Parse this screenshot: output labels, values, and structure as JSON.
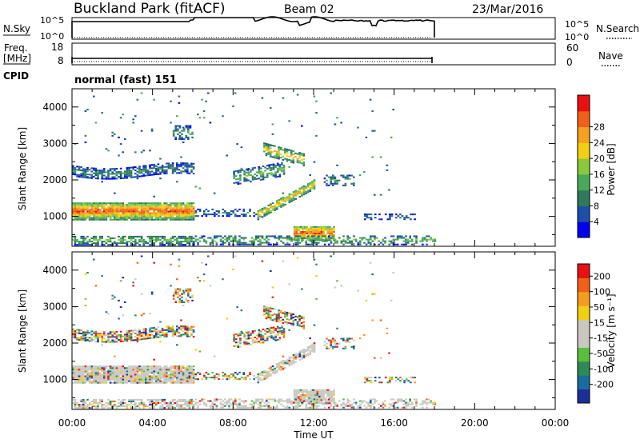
{
  "header": {
    "site": "Buckland Park (fitACF)",
    "beam": "Beam 02",
    "date": "23/Mar/2016"
  },
  "panels": {
    "nsky_label": "N.Sky",
    "nsky_ticks": [
      "10^5",
      "10^0"
    ],
    "nsearch_label": "N.Search",
    "freq_label_1": "Freq.",
    "freq_label_2": "[MHz]",
    "freq_ticks": [
      "18",
      "8"
    ],
    "nave_label": "Nave",
    "nave_ticks": [
      "60",
      "0"
    ],
    "cpid_label": "CPID",
    "cpid_text": "normal (fast) 151"
  },
  "chart_data": [
    {
      "type": "heatmap",
      "ylabel": "Slant Range [km]",
      "xlabel": "Time UT",
      "ylim": [
        180,
        4500
      ],
      "xlim": [
        "00:00",
        "24:00"
      ],
      "yticks": [
        "1000",
        "2000",
        "3000",
        "4000"
      ],
      "xticks": [
        "00:00",
        "04:00",
        "08:00",
        "12:00",
        "16:00",
        "20:00",
        "00:00"
      ],
      "colorbar": {
        "label": "Power [dB]",
        "ticks": [
          "4",
          "8",
          "12",
          "16",
          "20",
          "24",
          "28"
        ],
        "colors": [
          "#0000ee",
          "#1c4fa8",
          "#2d7a5c",
          "#4aa85a",
          "#8cc83c",
          "#f0d010",
          "#f4a020",
          "#f06018",
          "#e81010"
        ],
        "range": [
          0,
          32
        ]
      }
    },
    {
      "type": "heatmap",
      "ylabel": "Slant Range [km]",
      "xlabel": "Time UT",
      "ylim": [
        180,
        4500
      ],
      "xlim": [
        "00:00",
        "24:00"
      ],
      "yticks": [
        "1000",
        "2000",
        "3000",
        "4000"
      ],
      "xticks": [
        "00:00",
        "04:00",
        "08:00",
        "12:00",
        "16:00",
        "20:00",
        "00:00"
      ],
      "colorbar": {
        "label": "Velocity [m s⁻¹]",
        "ticks": [
          "200",
          "100",
          "50",
          "15",
          "-15",
          "-50",
          "-100",
          "-200"
        ],
        "colors": [
          "#1a2f9a",
          "#1b6b9e",
          "#2f8a56",
          "#5bbf3c",
          "#c8c8c0",
          "#c8c8c0",
          "#f0d010",
          "#f49c20",
          "#f06018",
          "#e81010"
        ]
      }
    }
  ],
  "colors": {
    "power_band_core": "#e81010",
    "power_band_edge": "#4aa85a",
    "velocity_ground": "#c8c8c0"
  }
}
